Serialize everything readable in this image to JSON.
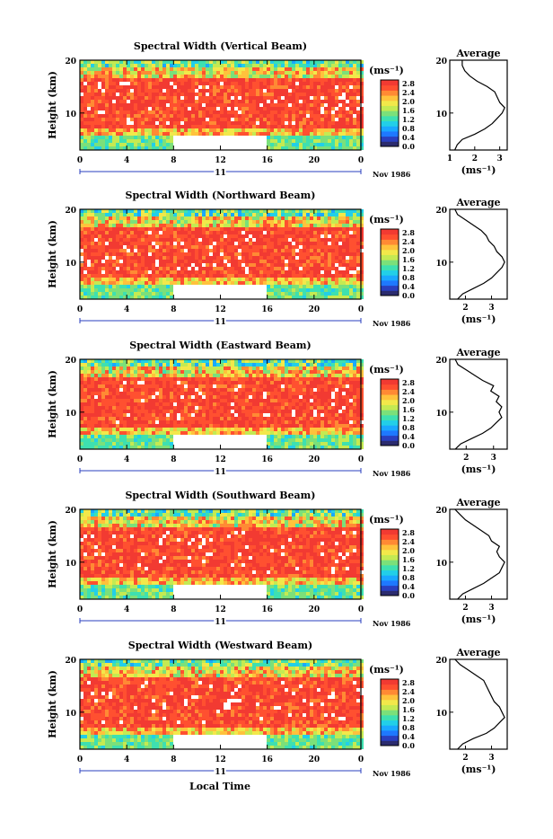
{
  "figure": {
    "x_axis_title": "Local Time",
    "date_caption": "Nov 1986",
    "day_label": "11",
    "y_axis_title": "Height (km)",
    "unit": "(ms⁻¹)",
    "colorbar_ticks": [
      "2.8",
      "2.4",
      "2.0",
      "1.6",
      "1.2",
      "0.8",
      "0.4",
      "0.0"
    ],
    "avg_title": "Average",
    "colors": {
      "palette": [
        "#2b2b6e",
        "#2a3fbf",
        "#1e78ff",
        "#1aa8ff",
        "#22cfe8",
        "#3ee0b0",
        "#7be07a",
        "#c4ea52",
        "#f2e84a",
        "#ffc23c",
        "#ff8a34",
        "#ff5030",
        "#f23a32"
      ],
      "background_red": "#f23a32"
    }
  },
  "chart_data": [
    {
      "type": "heatmap",
      "title": "Spectral Width (Vertical Beam)",
      "xlabel": "Local Time",
      "ylabel": "Height (km)",
      "x_ticks": [
        "0",
        "4",
        "8",
        "12",
        "16",
        "20",
        "0"
      ],
      "y_ticks": [
        "20",
        "10"
      ],
      "xlim": [
        0,
        24
      ],
      "ylim": [
        3,
        20
      ],
      "colorbar": {
        "unit": "(ms⁻¹)",
        "range": [
          0.0,
          2.8
        ]
      },
      "data_gap_hours": [
        8,
        16
      ],
      "average_profile": {
        "title": "Average",
        "xlabel": "(ms⁻¹)",
        "x_ticks": [
          "1",
          "2",
          "3"
        ],
        "y_ticks": [
          "20",
          "10"
        ],
        "xlim": [
          1,
          3.3
        ],
        "height": [
          3,
          4,
          5,
          6,
          7,
          8,
          9,
          10,
          11,
          12,
          13,
          14,
          15,
          16,
          17,
          18,
          19,
          20
        ],
        "value": [
          1.2,
          1.3,
          1.5,
          2.0,
          2.4,
          2.7,
          2.9,
          3.1,
          3.2,
          3.0,
          2.9,
          2.8,
          2.5,
          2.1,
          1.8,
          1.6,
          1.5,
          1.5
        ]
      }
    },
    {
      "type": "heatmap",
      "title": "Spectral Width (Northward Beam)",
      "xlabel": "Local Time",
      "ylabel": "Height (km)",
      "x_ticks": [
        "0",
        "4",
        "8",
        "12",
        "16",
        "20",
        "0"
      ],
      "y_ticks": [
        "20",
        "10"
      ],
      "xlim": [
        0,
        24
      ],
      "ylim": [
        3,
        20
      ],
      "colorbar": {
        "unit": "(ms⁻¹)",
        "range": [
          0.0,
          2.8
        ]
      },
      "data_gap_hours": [
        8,
        16
      ],
      "average_profile": {
        "title": "Average",
        "xlabel": "(ms⁻¹)",
        "x_ticks": [
          "2",
          "3"
        ],
        "y_ticks": [
          "20",
          "10"
        ],
        "xlim": [
          1.4,
          3.6
        ],
        "height": [
          3,
          4,
          5,
          6,
          7,
          8,
          9,
          10,
          11,
          12,
          13,
          14,
          15,
          16,
          17,
          18,
          19,
          20
        ],
        "value": [
          1.7,
          1.9,
          2.3,
          2.7,
          3.0,
          3.2,
          3.4,
          3.5,
          3.4,
          3.2,
          3.1,
          2.9,
          2.8,
          2.6,
          2.3,
          2.0,
          1.7,
          1.6
        ]
      }
    },
    {
      "type": "heatmap",
      "title": "Spectral Width (Eastward Beam)",
      "xlabel": "Local Time",
      "ylabel": "Height (km)",
      "x_ticks": [
        "0",
        "4",
        "8",
        "12",
        "16",
        "20",
        "0"
      ],
      "y_ticks": [
        "20",
        "10"
      ],
      "xlim": [
        0,
        24
      ],
      "ylim": [
        3,
        20
      ],
      "colorbar": {
        "unit": "(ms⁻¹)",
        "range": [
          0.0,
          2.8
        ]
      },
      "data_gap_hours": [
        8,
        16
      ],
      "average_profile": {
        "title": "Average",
        "xlabel": "(ms⁻¹)",
        "x_ticks": [
          "2",
          "3"
        ],
        "y_ticks": [
          "20",
          "10"
        ],
        "xlim": [
          1.4,
          3.5
        ],
        "height": [
          3,
          4,
          5,
          6,
          7,
          8,
          9,
          10,
          11,
          12,
          13,
          14,
          15,
          16,
          17,
          18,
          19,
          20
        ],
        "value": [
          1.6,
          1.8,
          2.2,
          2.6,
          2.9,
          3.1,
          3.3,
          3.2,
          3.3,
          3.1,
          3.2,
          2.9,
          3.0,
          2.6,
          2.3,
          2.0,
          1.7,
          1.6
        ]
      }
    },
    {
      "type": "heatmap",
      "title": "Spectral Width (Southward Beam)",
      "xlabel": "Local Time",
      "ylabel": "Height (km)",
      "x_ticks": [
        "0",
        "4",
        "8",
        "12",
        "16",
        "20",
        "0"
      ],
      "y_ticks": [
        "20",
        "10"
      ],
      "xlim": [
        0,
        24
      ],
      "ylim": [
        3,
        20
      ],
      "colorbar": {
        "unit": "(ms⁻¹)",
        "range": [
          0.0,
          2.8
        ]
      },
      "data_gap_hours": [
        8,
        16
      ],
      "average_profile": {
        "title": "Average",
        "xlabel": "(ms⁻¹)",
        "x_ticks": [
          "2",
          "3"
        ],
        "y_ticks": [
          "20",
          "10"
        ],
        "xlim": [
          1.4,
          3.6
        ],
        "height": [
          3,
          4,
          5,
          6,
          7,
          8,
          9,
          10,
          11,
          12,
          13,
          14,
          15,
          16,
          17,
          18,
          19,
          20
        ],
        "value": [
          1.7,
          1.9,
          2.3,
          2.7,
          3.0,
          3.3,
          3.4,
          3.5,
          3.3,
          3.2,
          3.3,
          3.0,
          2.9,
          2.6,
          2.3,
          2.0,
          1.8,
          1.6
        ]
      }
    },
    {
      "type": "heatmap",
      "title": "Spectral Width (Westward Beam)",
      "xlabel": "Local Time",
      "ylabel": "Height (km)",
      "x_ticks": [
        "0",
        "4",
        "8",
        "12",
        "16",
        "20",
        "0"
      ],
      "y_ticks": [
        "20",
        "10"
      ],
      "xlim": [
        0,
        24
      ],
      "ylim": [
        3,
        20
      ],
      "colorbar": {
        "unit": "(ms⁻¹)",
        "range": [
          0.0,
          2.8
        ]
      },
      "data_gap_hours": [
        8,
        16
      ],
      "average_profile": {
        "title": "Average",
        "xlabel": "(ms⁻¹)",
        "x_ticks": [
          "2",
          "3"
        ],
        "y_ticks": [
          "20",
          "10"
        ],
        "xlim": [
          1.4,
          3.6
        ],
        "height": [
          3,
          4,
          5,
          6,
          7,
          8,
          9,
          10,
          11,
          12,
          13,
          14,
          15,
          16,
          17,
          18,
          19,
          20
        ],
        "value": [
          1.7,
          1.9,
          2.3,
          2.8,
          3.1,
          3.3,
          3.5,
          3.4,
          3.3,
          3.1,
          3.0,
          2.9,
          2.8,
          2.7,
          2.4,
          2.1,
          1.8,
          1.6
        ]
      }
    }
  ]
}
